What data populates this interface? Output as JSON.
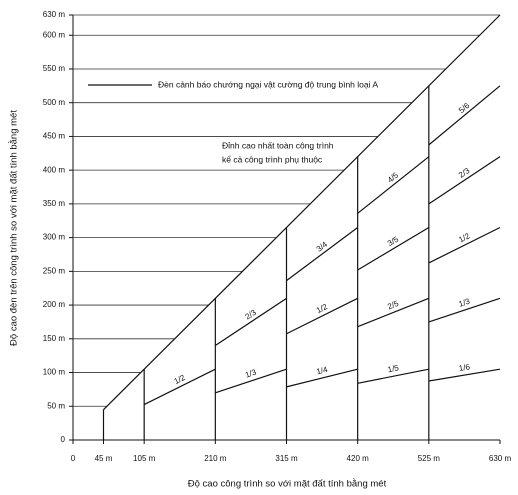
{
  "chart_data": {
    "type": "line",
    "legend_label": "Đèn cảnh báo chướng ngại vật cường độ trung bình loại A",
    "note": [
      "Đỉnh cao nhất toàn công trình",
      "kể cả công trình phụ thuộc"
    ],
    "x_label": "Độ cao công trình so với mặt đất tính bằng mét",
    "y_label": "Độ cao đèn trên công trình so với mặt đất tính bằng mét",
    "xlim": [
      0,
      630
    ],
    "ylim": [
      0,
      630
    ],
    "xticks": [
      0,
      {
        "value": 45,
        "label": "45 m"
      },
      {
        "value": 105,
        "label": "105 m"
      },
      {
        "value": 210,
        "label": "210 m"
      },
      {
        "value": 315,
        "label": "315 m"
      },
      {
        "value": 420,
        "label": "420 m"
      },
      {
        "value": 525,
        "label": "525 m"
      },
      {
        "value": 630,
        "label": "630 m"
      }
    ],
    "yticks": [
      0,
      {
        "value": 50,
        "label": "50 m"
      },
      {
        "value": 100,
        "label": "100 m"
      },
      {
        "value": 150,
        "label": "150 m"
      },
      {
        "value": 200,
        "label": "200 m"
      },
      {
        "value": 250,
        "label": "250 m"
      },
      {
        "value": 300,
        "label": "300 m"
      },
      {
        "value": 350,
        "label": "350 m"
      },
      {
        "value": 400,
        "label": "400 m"
      },
      {
        "value": 450,
        "label": "450 m"
      },
      {
        "value": 500,
        "label": "500 m"
      },
      {
        "value": 550,
        "label": "550 m"
      },
      {
        "value": 600,
        "label": "600 m"
      },
      {
        "value": 630,
        "label": "630 m"
      }
    ],
    "grid": true,
    "color": "#111111",
    "series": [
      {
        "x": [
          45,
          630
        ],
        "values": [
          45,
          630
        ]
      },
      {
        "x": [
          45,
          45
        ],
        "values": [
          0,
          45
        ]
      },
      {
        "x": [
          105,
          105
        ],
        "values": [
          0,
          105
        ]
      },
      {
        "x": [
          210,
          210
        ],
        "values": [
          0,
          210
        ]
      },
      {
        "x": [
          315,
          315
        ],
        "values": [
          0,
          315
        ]
      },
      {
        "x": [
          420,
          420
        ],
        "values": [
          0,
          420
        ]
      },
      {
        "x": [
          525,
          525
        ],
        "values": [
          0,
          525
        ]
      },
      {
        "label": "1/2",
        "x": [
          105,
          210
        ],
        "values": [
          52.5,
          105
        ]
      },
      {
        "label": "1/3",
        "x": [
          210,
          315
        ],
        "values": [
          70,
          105
        ]
      },
      {
        "label": "2/3",
        "x": [
          210,
          315
        ],
        "values": [
          140,
          210
        ]
      },
      {
        "label": "1/4",
        "x": [
          315,
          420
        ],
        "values": [
          78.75,
          105
        ]
      },
      {
        "label": "1/2",
        "x": [
          315,
          420
        ],
        "values": [
          157.5,
          210
        ]
      },
      {
        "label": "3/4",
        "x": [
          315,
          420
        ],
        "values": [
          236.25,
          315
        ]
      },
      {
        "label": "1/5",
        "x": [
          420,
          525
        ],
        "values": [
          84,
          105
        ]
      },
      {
        "label": "2/5",
        "x": [
          420,
          525
        ],
        "values": [
          168,
          210
        ]
      },
      {
        "label": "3/5",
        "x": [
          420,
          525
        ],
        "values": [
          252,
          315
        ]
      },
      {
        "label": "4/5",
        "x": [
          420,
          525
        ],
        "values": [
          336,
          420
        ]
      },
      {
        "label": "1/6",
        "x": [
          525,
          630
        ],
        "values": [
          87.5,
          105
        ]
      },
      {
        "label": "1/3",
        "x": [
          525,
          630
        ],
        "values": [
          175,
          210
        ]
      },
      {
        "label": "1/2",
        "x": [
          525,
          630
        ],
        "values": [
          262.5,
          315
        ]
      },
      {
        "label": "2/3",
        "x": [
          525,
          630
        ],
        "values": [
          350,
          420
        ]
      },
      {
        "label": "5/6",
        "x": [
          525,
          630
        ],
        "values": [
          437.5,
          525
        ]
      }
    ]
  }
}
